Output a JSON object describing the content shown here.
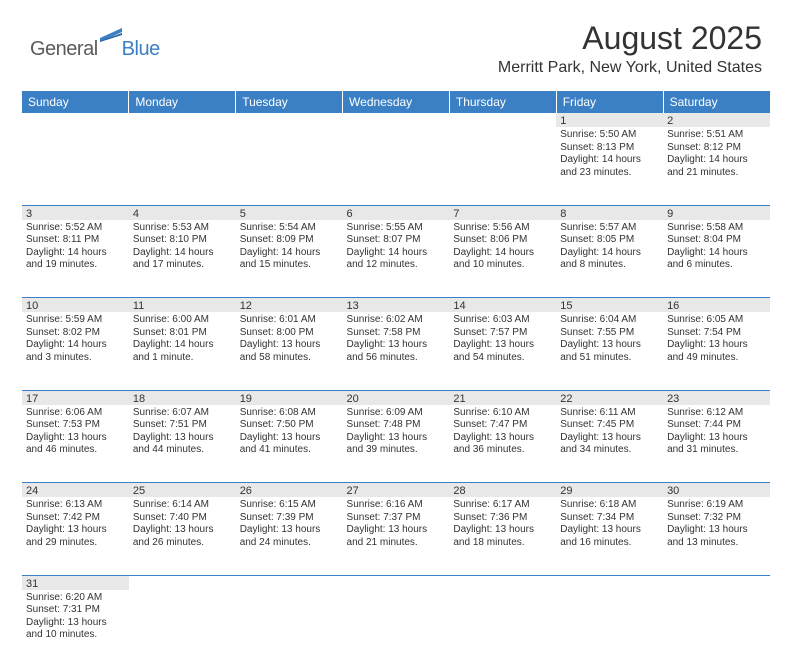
{
  "logo": {
    "part1": "General",
    "part2": "Blue"
  },
  "title": "August 2025",
  "location": "Merritt Park, New York, United States",
  "colors": {
    "header_bg": "#3b7fc4",
    "header_text": "#ffffff",
    "daynum_bg": "#e8e8e8",
    "text": "#333333",
    "logo_gray": "#5a5a5a",
    "logo_blue": "#3b7fc4",
    "border": "#3b7fc4"
  },
  "day_headers": [
    "Sunday",
    "Monday",
    "Tuesday",
    "Wednesday",
    "Thursday",
    "Friday",
    "Saturday"
  ],
  "weeks": [
    [
      null,
      null,
      null,
      null,
      null,
      {
        "n": "1",
        "sr": "5:50 AM",
        "ss": "8:13 PM",
        "dl": "14 hours and 23 minutes."
      },
      {
        "n": "2",
        "sr": "5:51 AM",
        "ss": "8:12 PM",
        "dl": "14 hours and 21 minutes."
      }
    ],
    [
      {
        "n": "3",
        "sr": "5:52 AM",
        "ss": "8:11 PM",
        "dl": "14 hours and 19 minutes."
      },
      {
        "n": "4",
        "sr": "5:53 AM",
        "ss": "8:10 PM",
        "dl": "14 hours and 17 minutes."
      },
      {
        "n": "5",
        "sr": "5:54 AM",
        "ss": "8:09 PM",
        "dl": "14 hours and 15 minutes."
      },
      {
        "n": "6",
        "sr": "5:55 AM",
        "ss": "8:07 PM",
        "dl": "14 hours and 12 minutes."
      },
      {
        "n": "7",
        "sr": "5:56 AM",
        "ss": "8:06 PM",
        "dl": "14 hours and 10 minutes."
      },
      {
        "n": "8",
        "sr": "5:57 AM",
        "ss": "8:05 PM",
        "dl": "14 hours and 8 minutes."
      },
      {
        "n": "9",
        "sr": "5:58 AM",
        "ss": "8:04 PM",
        "dl": "14 hours and 6 minutes."
      }
    ],
    [
      {
        "n": "10",
        "sr": "5:59 AM",
        "ss": "8:02 PM",
        "dl": "14 hours and 3 minutes."
      },
      {
        "n": "11",
        "sr": "6:00 AM",
        "ss": "8:01 PM",
        "dl": "14 hours and 1 minute."
      },
      {
        "n": "12",
        "sr": "6:01 AM",
        "ss": "8:00 PM",
        "dl": "13 hours and 58 minutes."
      },
      {
        "n": "13",
        "sr": "6:02 AM",
        "ss": "7:58 PM",
        "dl": "13 hours and 56 minutes."
      },
      {
        "n": "14",
        "sr": "6:03 AM",
        "ss": "7:57 PM",
        "dl": "13 hours and 54 minutes."
      },
      {
        "n": "15",
        "sr": "6:04 AM",
        "ss": "7:55 PM",
        "dl": "13 hours and 51 minutes."
      },
      {
        "n": "16",
        "sr": "6:05 AM",
        "ss": "7:54 PM",
        "dl": "13 hours and 49 minutes."
      }
    ],
    [
      {
        "n": "17",
        "sr": "6:06 AM",
        "ss": "7:53 PM",
        "dl": "13 hours and 46 minutes."
      },
      {
        "n": "18",
        "sr": "6:07 AM",
        "ss": "7:51 PM",
        "dl": "13 hours and 44 minutes."
      },
      {
        "n": "19",
        "sr": "6:08 AM",
        "ss": "7:50 PM",
        "dl": "13 hours and 41 minutes."
      },
      {
        "n": "20",
        "sr": "6:09 AM",
        "ss": "7:48 PM",
        "dl": "13 hours and 39 minutes."
      },
      {
        "n": "21",
        "sr": "6:10 AM",
        "ss": "7:47 PM",
        "dl": "13 hours and 36 minutes."
      },
      {
        "n": "22",
        "sr": "6:11 AM",
        "ss": "7:45 PM",
        "dl": "13 hours and 34 minutes."
      },
      {
        "n": "23",
        "sr": "6:12 AM",
        "ss": "7:44 PM",
        "dl": "13 hours and 31 minutes."
      }
    ],
    [
      {
        "n": "24",
        "sr": "6:13 AM",
        "ss": "7:42 PM",
        "dl": "13 hours and 29 minutes."
      },
      {
        "n": "25",
        "sr": "6:14 AM",
        "ss": "7:40 PM",
        "dl": "13 hours and 26 minutes."
      },
      {
        "n": "26",
        "sr": "6:15 AM",
        "ss": "7:39 PM",
        "dl": "13 hours and 24 minutes."
      },
      {
        "n": "27",
        "sr": "6:16 AM",
        "ss": "7:37 PM",
        "dl": "13 hours and 21 minutes."
      },
      {
        "n": "28",
        "sr": "6:17 AM",
        "ss": "7:36 PM",
        "dl": "13 hours and 18 minutes."
      },
      {
        "n": "29",
        "sr": "6:18 AM",
        "ss": "7:34 PM",
        "dl": "13 hours and 16 minutes."
      },
      {
        "n": "30",
        "sr": "6:19 AM",
        "ss": "7:32 PM",
        "dl": "13 hours and 13 minutes."
      }
    ],
    [
      {
        "n": "31",
        "sr": "6:20 AM",
        "ss": "7:31 PM",
        "dl": "13 hours and 10 minutes."
      },
      null,
      null,
      null,
      null,
      null,
      null
    ]
  ],
  "labels": {
    "sunrise": "Sunrise:",
    "sunset": "Sunset:",
    "daylight": "Daylight:"
  }
}
